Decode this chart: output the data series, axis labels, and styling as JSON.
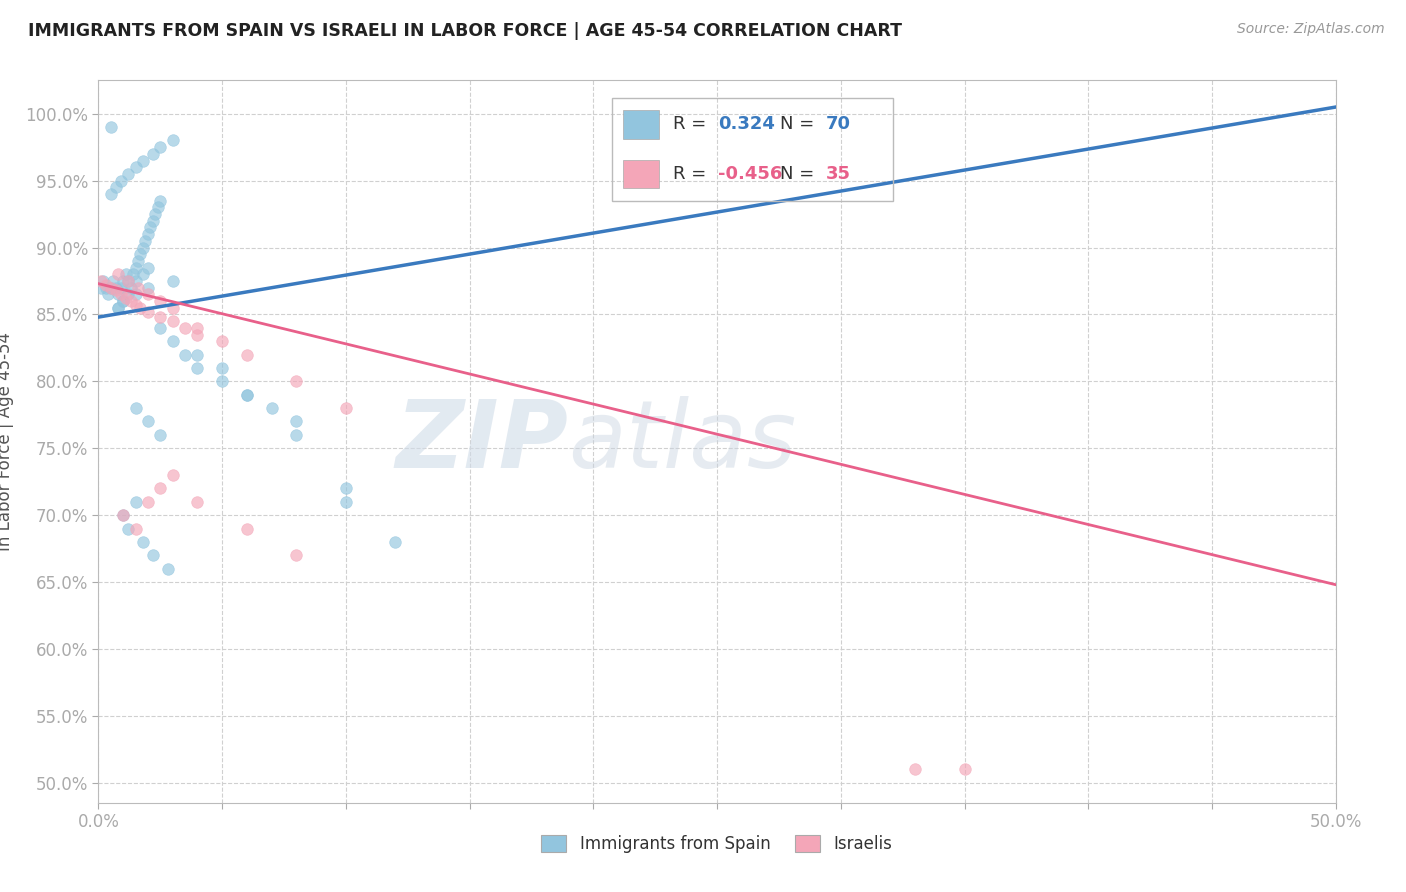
{
  "title": "IMMIGRANTS FROM SPAIN VS ISRAELI IN LABOR FORCE | AGE 45-54 CORRELATION CHART",
  "source": "Source: ZipAtlas.com",
  "ylabel": "In Labor Force | Age 45-54",
  "xlim": [
    0.0,
    0.5
  ],
  "ylim": [
    0.485,
    1.025
  ],
  "xticks": [
    0.0,
    0.05,
    0.1,
    0.15,
    0.2,
    0.25,
    0.3,
    0.35,
    0.4,
    0.45,
    0.5
  ],
  "xticklabels": [
    "0.0%",
    "",
    "",
    "",
    "",
    "",
    "",
    "",
    "",
    "",
    "50.0%"
  ],
  "yticks": [
    0.5,
    0.55,
    0.6,
    0.65,
    0.7,
    0.75,
    0.8,
    0.85,
    0.9,
    0.95,
    1.0
  ],
  "yticklabels": [
    "50.0%",
    "55.0%",
    "60.0%",
    "65.0%",
    "70.0%",
    "75.0%",
    "80.0%",
    "85.0%",
    "90.0%",
    "95.0%",
    "100.0%"
  ],
  "legend_R_blue": "0.324",
  "legend_N_blue": "70",
  "legend_R_pink": "-0.456",
  "legend_N_pink": "35",
  "blue_color": "#92c5de",
  "pink_color": "#f4a6b8",
  "blue_line_color": "#3a7abf",
  "pink_line_color": "#e8608a",
  "watermark_zip": "ZIP",
  "watermark_atlas": "atlas",
  "blue_line_x0": 0.0,
  "blue_line_y0": 0.848,
  "blue_line_x1": 0.5,
  "blue_line_y1": 1.005,
  "pink_line_x0": 0.0,
  "pink_line_y0": 0.873,
  "pink_line_x1": 0.5,
  "pink_line_y1": 0.648,
  "blue_scatter_x": [
    0.001,
    0.002,
    0.003,
    0.004,
    0.005,
    0.006,
    0.007,
    0.008,
    0.009,
    0.01,
    0.011,
    0.012,
    0.013,
    0.014,
    0.015,
    0.016,
    0.017,
    0.018,
    0.019,
    0.02,
    0.021,
    0.022,
    0.023,
    0.024,
    0.025,
    0.005,
    0.007,
    0.009,
    0.012,
    0.015,
    0.018,
    0.022,
    0.025,
    0.03,
    0.008,
    0.01,
    0.012,
    0.015,
    0.018,
    0.02,
    0.025,
    0.03,
    0.035,
    0.04,
    0.05,
    0.06,
    0.07,
    0.08,
    0.1,
    0.12,
    0.008,
    0.01,
    0.015,
    0.02,
    0.03,
    0.04,
    0.05,
    0.06,
    0.08,
    0.1,
    0.015,
    0.02,
    0.025,
    0.015,
    0.01,
    0.012,
    0.018,
    0.022,
    0.028,
    0.005
  ],
  "blue_scatter_y": [
    0.87,
    0.875,
    0.87,
    0.865,
    0.87,
    0.875,
    0.87,
    0.865,
    0.87,
    0.875,
    0.88,
    0.875,
    0.87,
    0.88,
    0.885,
    0.89,
    0.895,
    0.9,
    0.905,
    0.91,
    0.915,
    0.92,
    0.925,
    0.93,
    0.935,
    0.94,
    0.945,
    0.95,
    0.955,
    0.96,
    0.965,
    0.97,
    0.975,
    0.98,
    0.855,
    0.86,
    0.865,
    0.875,
    0.88,
    0.885,
    0.84,
    0.83,
    0.82,
    0.81,
    0.8,
    0.79,
    0.78,
    0.77,
    0.72,
    0.68,
    0.855,
    0.86,
    0.865,
    0.87,
    0.875,
    0.82,
    0.81,
    0.79,
    0.76,
    0.71,
    0.78,
    0.77,
    0.76,
    0.71,
    0.7,
    0.69,
    0.68,
    0.67,
    0.66,
    0.99
  ],
  "pink_scatter_x": [
    0.001,
    0.003,
    0.005,
    0.007,
    0.009,
    0.011,
    0.013,
    0.015,
    0.017,
    0.02,
    0.025,
    0.03,
    0.035,
    0.04,
    0.008,
    0.012,
    0.016,
    0.02,
    0.025,
    0.03,
    0.04,
    0.05,
    0.06,
    0.08,
    0.1,
    0.01,
    0.015,
    0.02,
    0.025,
    0.03,
    0.04,
    0.06,
    0.08,
    0.33,
    0.35
  ],
  "pink_scatter_y": [
    0.875,
    0.872,
    0.87,
    0.868,
    0.865,
    0.862,
    0.86,
    0.857,
    0.855,
    0.852,
    0.848,
    0.845,
    0.84,
    0.835,
    0.88,
    0.875,
    0.87,
    0.865,
    0.86,
    0.855,
    0.84,
    0.83,
    0.82,
    0.8,
    0.78,
    0.7,
    0.69,
    0.71,
    0.72,
    0.73,
    0.71,
    0.69,
    0.67,
    0.51,
    0.51
  ]
}
